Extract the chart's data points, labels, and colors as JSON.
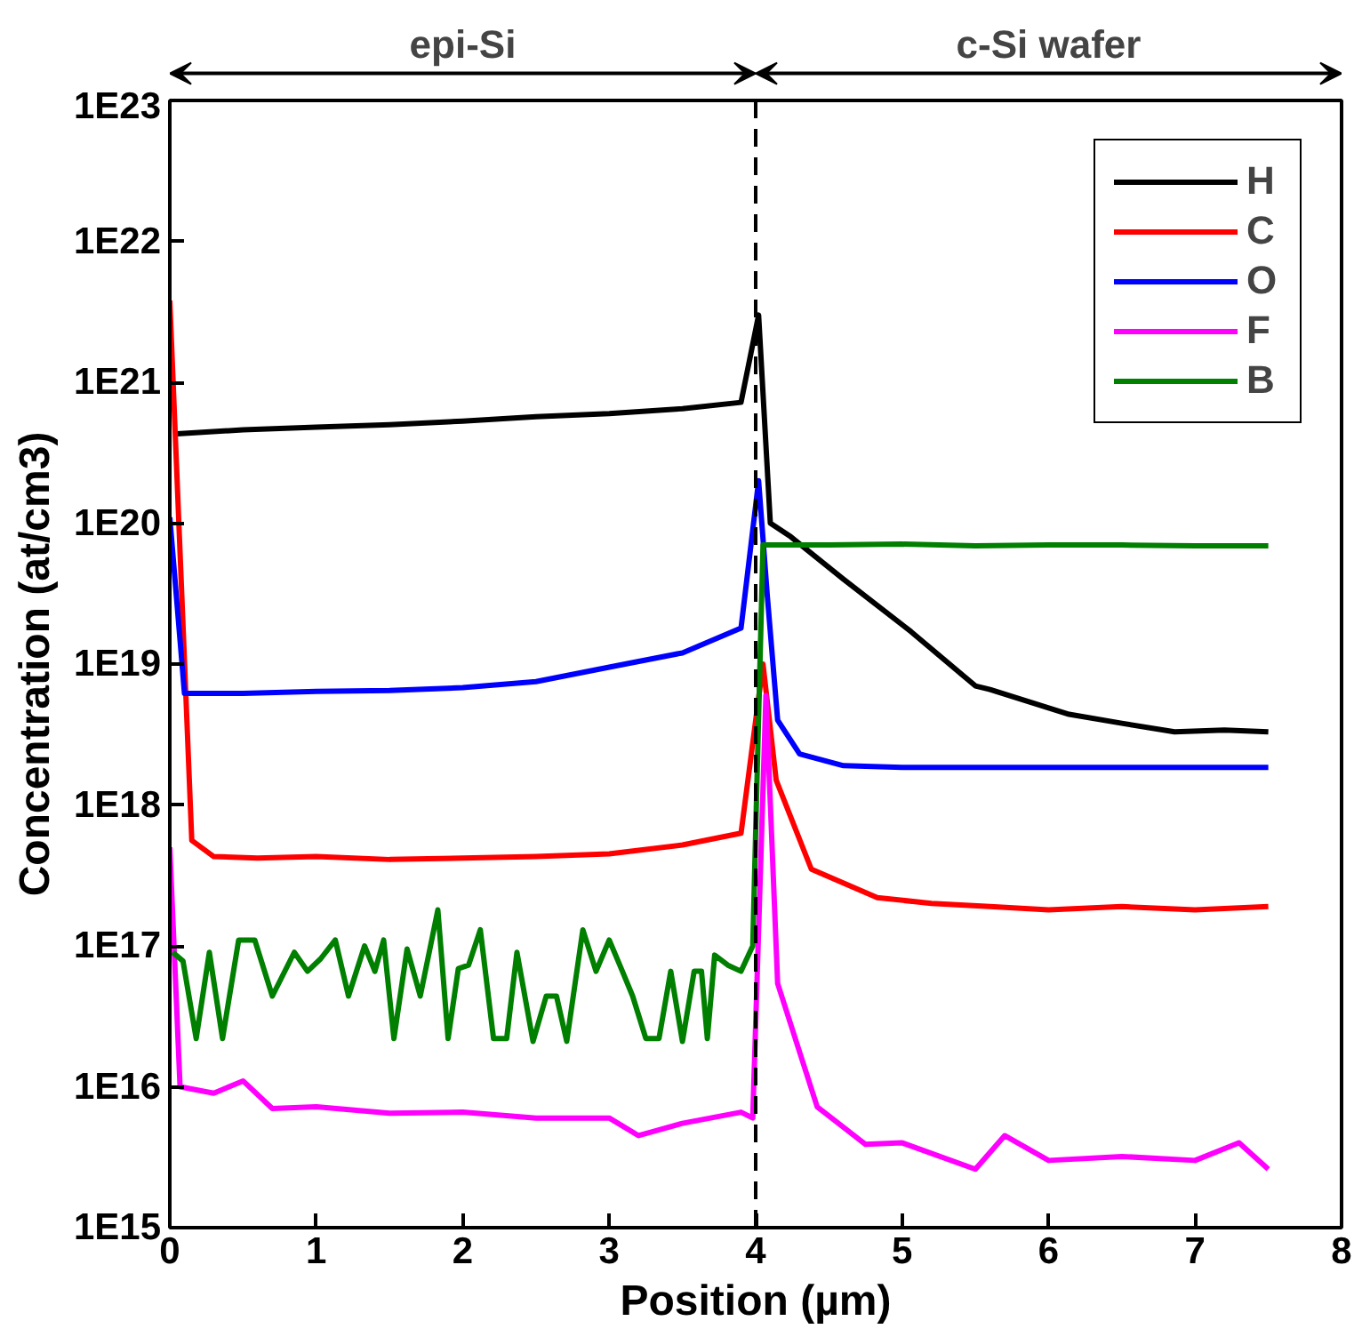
{
  "chart_data": {
    "type": "line",
    "xlabel": "Position (µm)",
    "ylabel": "Concentration (at/cm3)",
    "annotations": [
      "epi-Si",
      "c-Si wafer"
    ],
    "xlim": [
      0,
      8
    ],
    "xticks": [
      0,
      1,
      2,
      3,
      4,
      5,
      6,
      7,
      8
    ],
    "ylim": [
      1000000000000000.0,
      1e+23
    ],
    "yticks": [
      {
        "value": 1000000000000000.0,
        "label": "1E15"
      },
      {
        "value": 1e+16,
        "label": "1E16"
      },
      {
        "value": 1e+17,
        "label": "1E17"
      },
      {
        "value": 1e+18,
        "label": "1E18"
      },
      {
        "value": 1e+19,
        "label": "1E19"
      },
      {
        "value": 1e+20,
        "label": "1E20"
      },
      {
        "value": 1e+21,
        "label": "1E21"
      },
      {
        "value": 1e+22,
        "label": "1E22"
      },
      {
        "value": 1e+23,
        "label": "1E23"
      }
    ],
    "log": "y",
    "grid": false,
    "legend": "top right",
    "line_style": "solid",
    "ref_lines": [
      {
        "axis": "x",
        "value": 4,
        "color": "#000000",
        "line_style": "dashed"
      }
    ],
    "series": [
      {
        "name": "H",
        "color": "#000000",
        "x": [
          0.05,
          0.5,
          1,
          1.5,
          2,
          2.5,
          3,
          3.5,
          3.9,
          4.02,
          4.1,
          4.24,
          4.6,
          5.06,
          5.5,
          5.6,
          6.14,
          6.5,
          6.86,
          7.2,
          7.5
        ],
        "values": [
          4.3e+20,
          4.6e+20,
          4.8e+20,
          5e+20,
          5.3e+20,
          5.7e+20,
          6e+20,
          6.5e+20,
          7.2e+20,
          3e+21,
          1e+20,
          8e+19,
          4e+19,
          1.7e+19,
          7e+18,
          6.6e+18,
          4.4e+18,
          3.8e+18,
          3.3e+18,
          3.4e+18,
          3.3e+18
        ]
      },
      {
        "name": "C",
        "color": "#ff0000",
        "x": [
          0,
          0.15,
          0.3,
          0.6,
          1,
          1.5,
          2,
          2.5,
          3,
          3.5,
          3.9,
          4.05,
          4.14,
          4.38,
          4.83,
          5.2,
          5.6,
          6.0,
          6.5,
          7.0,
          7.5
        ],
        "values": [
          3.8e+21,
          5.6e+17,
          4.3e+17,
          4.2e+17,
          4.3e+17,
          4.1e+17,
          4.2e+17,
          4.3e+17,
          4.5e+17,
          5.2e+17,
          6.3e+17,
          1e+19,
          1.5e+18,
          3.5e+17,
          2.2e+17,
          2e+17,
          1.9e+17,
          1.8e+17,
          1.9e+17,
          1.8e+17,
          1.9e+17
        ]
      },
      {
        "name": "O",
        "color": "#0000ff",
        "x": [
          0,
          0.1,
          0.5,
          1,
          1.5,
          2,
          2.5,
          3,
          3.5,
          3.9,
          4.02,
          4.08,
          4.15,
          4.3,
          4.6,
          5,
          5.5,
          6,
          6.5,
          7,
          7.5
        ],
        "values": [
          1.1e+20,
          6.2e+18,
          6.2e+18,
          6.4e+18,
          6.5e+18,
          6.8e+18,
          7.5e+18,
          9.5e+18,
          1.2e+19,
          1.8e+19,
          2e+20,
          3e+19,
          4e+18,
          2.3e+18,
          1.9e+18,
          1.85e+18,
          1.85e+18,
          1.85e+18,
          1.85e+18,
          1.85e+18,
          1.85e+18
        ]
      },
      {
        "name": "F",
        "color": "#ff00ff",
        "x": [
          0,
          0.07,
          0.3,
          0.5,
          0.7,
          1,
          1.5,
          2,
          2.5,
          3,
          3.2,
          3.5,
          3.9,
          3.98,
          4.07,
          4.15,
          4.29,
          4.42,
          4.75,
          5,
          5.5,
          5.7,
          6,
          6.5,
          7,
          7.3,
          7.5
        ],
        "values": [
          5e+17,
          1e+16,
          9000000000000000.0,
          1.1e+16,
          7000000000000000.0,
          7200000000000000.0,
          6500000000000000.0,
          6600000000000000.0,
          6000000000000000.0,
          6000000000000000.0,
          4500000000000000.0,
          5500000000000000.0,
          6600000000000000.0,
          6000000000000000.0,
          6e+18,
          5.4e+16,
          1.9e+16,
          7200000000000000.0,
          3900000000000000.0,
          4000000000000000.0,
          2600000000000000.0,
          4500000000000000.0,
          3000000000000000.0,
          3200000000000000.0,
          3000000000000000.0,
          4000000000000000.0,
          2600000000000000.0
        ]
      },
      {
        "name": "B",
        "color": "#007f00",
        "x": [
          0.02,
          0.09,
          0.18,
          0.27,
          0.36,
          0.47,
          0.58,
          0.7,
          0.85,
          0.94,
          1.03,
          1.13,
          1.22,
          1.33,
          1.4,
          1.46,
          1.53,
          1.62,
          1.71,
          1.83,
          1.9,
          1.97,
          2.04,
          2.12,
          2.21,
          2.3,
          2.37,
          2.48,
          2.57,
          2.64,
          2.71,
          2.82,
          2.91,
          3.0,
          3.09,
          3.16,
          3.25,
          3.34,
          3.42,
          3.5,
          3.58,
          3.63,
          3.67,
          3.72,
          3.81,
          3.9,
          3.98,
          4.05,
          4.5,
          5,
          5.5,
          6,
          6.5,
          7,
          7.5
        ],
        "values": [
          9e+16,
          7.8e+16,
          2.2e+16,
          9e+16,
          2.2e+16,
          1.1e+17,
          1.1e+17,
          4.4e+16,
          9e+16,
          6.6e+16,
          8.1e+16,
          1.1e+17,
          4.4e+16,
          1e+17,
          6.6e+16,
          1.1e+17,
          2.2e+16,
          9.5e+16,
          4.4e+16,
          1.8e+17,
          2.2e+16,
          6.9e+16,
          7.3e+16,
          1.3e+17,
          2.2e+16,
          2.2e+16,
          9e+16,
          2.1e+16,
          4.4e+16,
          4.4e+16,
          2.1e+16,
          1.3e+17,
          6.6e+16,
          1.1e+17,
          6.6e+16,
          4.4e+16,
          2.2e+16,
          2.2e+16,
          6.6e+16,
          2.1e+16,
          6.6e+16,
          6.6e+16,
          2.2e+16,
          8.6e+16,
          7.3e+16,
          6.6e+16,
          1e+17,
          7e+19,
          7e+19,
          7.1e+19,
          6.9e+19,
          7e+19,
          7e+19,
          6.9e+19,
          6.9e+19
        ]
      }
    ]
  }
}
